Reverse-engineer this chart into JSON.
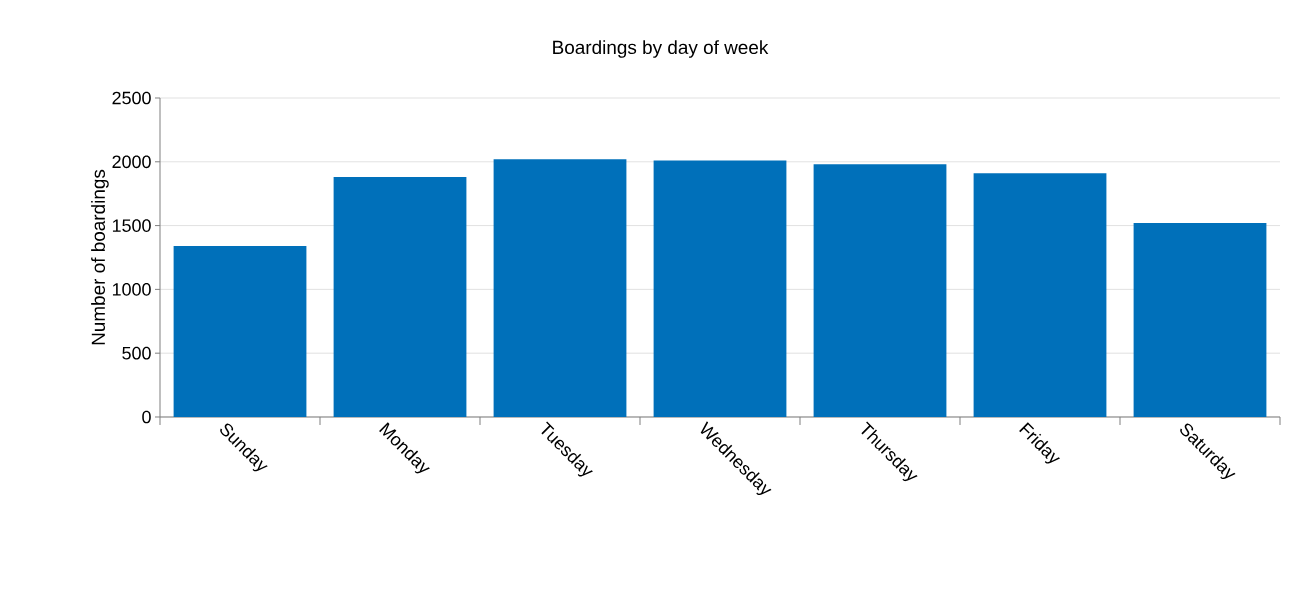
{
  "chart_data": {
    "type": "bar",
    "title": "Boardings by day of week",
    "ylabel": "Number of boardings",
    "categories": [
      "Sunday",
      "Monday",
      "Tuesday",
      "Wednesday",
      "Thursday",
      "Friday",
      "Saturday"
    ],
    "values": [
      1340,
      1880,
      2020,
      2010,
      1980,
      1910,
      1520
    ],
    "color": "#0070ba",
    "ylim": [
      0,
      2500
    ],
    "yticks": [
      0,
      500,
      1000,
      1500,
      2000,
      2500
    ],
    "grid": "y"
  }
}
